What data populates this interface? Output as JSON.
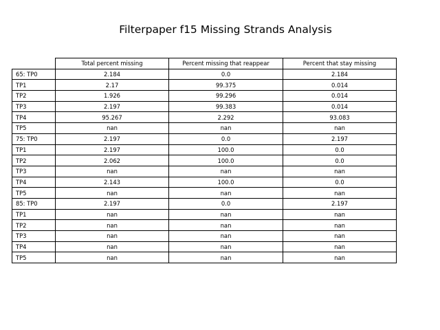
{
  "chart_data": {
    "type": "table",
    "title": "Filterpaper f15 Missing Strands Analysis",
    "columns": [
      "Total percent missing",
      "Percent missing that reappear",
      "Percent that stay missing"
    ],
    "rows": [
      {
        "label": "65: TP0",
        "values": [
          "2.184",
          "0.0",
          "2.184"
        ]
      },
      {
        "label": "TP1",
        "values": [
          "2.17",
          "99.375",
          "0.014"
        ]
      },
      {
        "label": "TP2",
        "values": [
          "1.926",
          "99.296",
          "0.014"
        ]
      },
      {
        "label": "TP3",
        "values": [
          "2.197",
          "99.383",
          "0.014"
        ]
      },
      {
        "label": "TP4",
        "values": [
          "95.267",
          "2.292",
          "93.083"
        ]
      },
      {
        "label": "TP5",
        "values": [
          "nan",
          "nan",
          "nan"
        ]
      },
      {
        "label": "75: TP0",
        "values": [
          "2.197",
          "0.0",
          "2.197"
        ]
      },
      {
        "label": "TP1",
        "values": [
          "2.197",
          "100.0",
          "0.0"
        ]
      },
      {
        "label": "TP2",
        "values": [
          "2.062",
          "100.0",
          "0.0"
        ]
      },
      {
        "label": "TP3",
        "values": [
          "nan",
          "nan",
          "nan"
        ]
      },
      {
        "label": "TP4",
        "values": [
          "2.143",
          "100.0",
          "0.0"
        ]
      },
      {
        "label": "TP5",
        "values": [
          "nan",
          "nan",
          "nan"
        ]
      },
      {
        "label": "85: TP0",
        "values": [
          "2.197",
          "0.0",
          "2.197"
        ]
      },
      {
        "label": "TP1",
        "values": [
          "nan",
          "nan",
          "nan"
        ]
      },
      {
        "label": "TP2",
        "values": [
          "nan",
          "nan",
          "nan"
        ]
      },
      {
        "label": "TP3",
        "values": [
          "nan",
          "nan",
          "nan"
        ]
      },
      {
        "label": "TP4",
        "values": [
          "nan",
          "nan",
          "nan"
        ]
      },
      {
        "label": "TP5",
        "values": [
          "nan",
          "nan",
          "nan"
        ]
      }
    ]
  }
}
